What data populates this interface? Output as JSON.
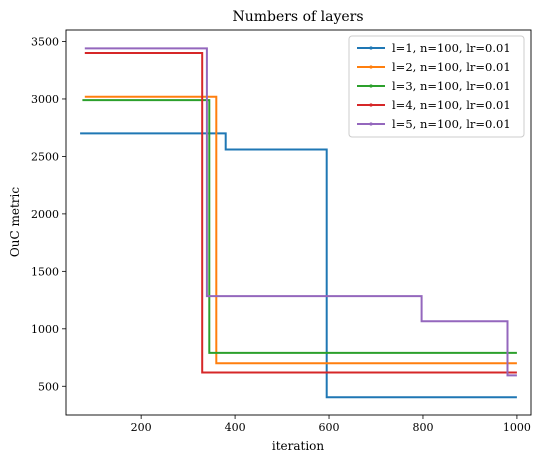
{
  "chart_data": {
    "type": "line",
    "title": "Numbers of layers",
    "xlabel": "iteration",
    "ylabel": "OuC metric",
    "xlim": [
      40,
      1030
    ],
    "ylim": [
      250,
      3600
    ],
    "xticks": [
      200,
      400,
      600,
      800,
      1000
    ],
    "yticks": [
      500,
      1000,
      1500,
      2000,
      2500,
      3000,
      3500
    ],
    "legend_position": "top-right",
    "grid": false,
    "series": [
      {
        "name": "l=1, n=100, lr=0.01",
        "color": "#1f77b4",
        "steps": [
          [
            70,
            2700
          ],
          [
            380,
            2700
          ],
          [
            380,
            2560
          ],
          [
            595,
            2560
          ],
          [
            595,
            405
          ],
          [
            1000,
            405
          ]
        ]
      },
      {
        "name": "l=2, n=100, lr=0.01",
        "color": "#ff7f0e",
        "steps": [
          [
            80,
            3020
          ],
          [
            360,
            3020
          ],
          [
            360,
            700
          ],
          [
            1000,
            700
          ]
        ]
      },
      {
        "name": "l=3, n=100, lr=0.01",
        "color": "#2ca02c",
        "steps": [
          [
            75,
            2990
          ],
          [
            345,
            2990
          ],
          [
            345,
            790
          ],
          [
            1000,
            790
          ]
        ]
      },
      {
        "name": "l=4, n=100, lr=0.01",
        "color": "#d62728",
        "steps": [
          [
            80,
            3400
          ],
          [
            330,
            3400
          ],
          [
            330,
            620
          ],
          [
            1000,
            620
          ]
        ]
      },
      {
        "name": "l=5, n=100, lr=0.01",
        "color": "#9467bd",
        "steps": [
          [
            80,
            3440
          ],
          [
            340,
            3440
          ],
          [
            340,
            1285
          ],
          [
            797,
            1285
          ],
          [
            797,
            1065
          ],
          [
            980,
            1065
          ],
          [
            980,
            595
          ],
          [
            1000,
            595
          ]
        ]
      }
    ]
  }
}
